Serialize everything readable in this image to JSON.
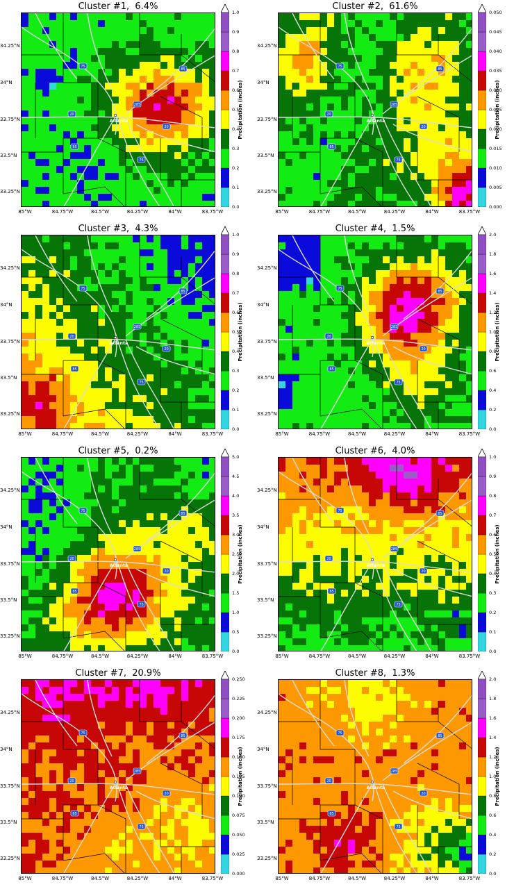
{
  "colorbar_colors": [
    "#33d6e0",
    "#0a0adb",
    "#13ec13",
    "#067406",
    "#fdfd00",
    "#fd9800",
    "#c70606",
    "#ff00ff",
    "#9a5cc6"
  ],
  "colorbar_label": "Precipitation (inches)",
  "x_ticks": [
    "85°W",
    "84.75°W",
    "84.5°W",
    "84.25°W",
    "84°W",
    "83.75°W"
  ],
  "y_ticks": [
    "34.25°N",
    "34°N",
    "33.75°N",
    "33.5°N",
    "33.25°N"
  ],
  "city_label": "Atlanta",
  "highway_labels": [
    "75",
    "85",
    "20",
    "285",
    "20",
    "85",
    "75"
  ],
  "chart_data": [
    {
      "type": "heatmap",
      "title": "Cluster #1,  6.4%",
      "cluster": 1,
      "percent": 6.4,
      "colorbar_ticks": [
        "0.0",
        "0.1",
        "0.2",
        "0.3",
        "0.4",
        "0.5",
        "0.6",
        "0.7",
        "0.8",
        "0.9",
        "1.0"
      ],
      "levels": [
        0,
        0.1,
        0.2,
        0.3,
        0.4,
        0.5,
        0.6,
        0.7,
        0.8,
        0.9,
        1.0
      ],
      "pattern": "Green (0.2–0.3) dominates west and north; blue patch (0.1–0.2) in northwest; orange-red maximum (0.5–0.7) east-southeast of Atlanta"
    },
    {
      "type": "heatmap",
      "title": "Cluster #2,  61.6%",
      "cluster": 2,
      "percent": 61.6,
      "colorbar_ticks": [
        "0.000",
        "0.005",
        "0.010",
        "0.015",
        "0.020",
        "0.025",
        "0.030",
        "0.035",
        "0.040",
        "0.045",
        "0.050"
      ],
      "levels": [
        0,
        0.005,
        0.01,
        0.015,
        0.02,
        0.025,
        0.03,
        0.035,
        0.04,
        0.045,
        0.05
      ],
      "pattern": "Mostly dark/light green (0.010–0.020); yellow-orange (0.020–0.030) in northwest and east; red (0.030+) in southeast corner"
    },
    {
      "type": "heatmap",
      "title": "Cluster #3,  4.3%",
      "cluster": 3,
      "percent": 4.3,
      "colorbar_ticks": [
        "0.0",
        "0.1",
        "0.2",
        "0.3",
        "0.4",
        "0.5",
        "0.6",
        "0.7",
        "0.8",
        "0.9",
        "1.0"
      ],
      "levels": [
        0,
        0.1,
        0.2,
        0.3,
        0.4,
        0.5,
        0.6,
        0.7,
        0.8,
        0.9,
        1.0
      ],
      "pattern": "Green (0.2–0.3) northeast with small blue patch; red to magenta (0.6–0.9) in southwest; yellow across center"
    },
    {
      "type": "heatmap",
      "title": "Cluster #4,  1.5%",
      "cluster": 4,
      "percent": 1.5,
      "colorbar_ticks": [
        "0.0",
        "0.2",
        "0.4",
        "0.6",
        "0.8",
        "1.0",
        "1.2",
        "1.4",
        "1.6",
        "1.8",
        "2.0"
      ],
      "levels": [
        0,
        0.2,
        0.4,
        0.6,
        0.8,
        1.0,
        1.2,
        1.4,
        1.6,
        1.8,
        2.0
      ],
      "pattern": "Blue (0.2–0.4) northwest; green west; orange-red (1.0–1.4) band from Atlanta northeast and southeast"
    },
    {
      "type": "heatmap",
      "title": "Cluster #5,  0.2%",
      "cluster": 5,
      "percent": 0.2,
      "colorbar_ticks": [
        "0.0",
        "0.5",
        "1.0",
        "1.5",
        "2.0",
        "2.5",
        "3.0",
        "3.5",
        "4.0",
        "4.5",
        "5.0"
      ],
      "levels": [
        0,
        0.5,
        1.0,
        1.5,
        2.0,
        2.5,
        3.0,
        3.5,
        4.0,
        4.5,
        5.0
      ],
      "pattern": "Green north and west edges; yellow-orange ring; red center-south with magenta maximum (3.5–4.5) south of Atlanta"
    },
    {
      "type": "heatmap",
      "title": "Cluster #6,  4.0%",
      "cluster": 6,
      "percent": 4.0,
      "colorbar_ticks": [
        "0.0",
        "0.1",
        "0.2",
        "0.3",
        "0.4",
        "0.5",
        "0.6",
        "0.7",
        "0.8",
        "0.9",
        "1.0"
      ],
      "levels": [
        0,
        0.1,
        0.2,
        0.3,
        0.4,
        0.5,
        0.6,
        0.7,
        0.8,
        0.9,
        1.0
      ],
      "pattern": "Red (0.6–0.8) north with magenta/purple (0.8–1.0) northeast; yellow center; green south with blue spots"
    },
    {
      "type": "heatmap",
      "title": "Cluster #7,  20.9%",
      "cluster": 7,
      "percent": 20.9,
      "colorbar_ticks": [
        "0.000",
        "0.025",
        "0.050",
        "0.075",
        "0.100",
        "0.125",
        "0.150",
        "0.175",
        "0.200",
        "0.225",
        "0.250"
      ],
      "levels": [
        0,
        0.025,
        0.05,
        0.075,
        0.1,
        0.125,
        0.15,
        0.175,
        0.2,
        0.225,
        0.25
      ],
      "pattern": "Dark red (0.150–0.200) dominant; magenta (0.200–0.225) in north; orange (0.125–0.150) southeast"
    },
    {
      "type": "heatmap",
      "title": "Cluster #8,  1.3%",
      "cluster": 8,
      "percent": 1.3,
      "colorbar_ticks": [
        "0.0",
        "0.2",
        "0.4",
        "0.6",
        "0.8",
        "1.0",
        "1.2",
        "1.4",
        "1.6",
        "1.8",
        "2.0"
      ],
      "levels": [
        0,
        0.2,
        0.4,
        0.6,
        0.8,
        1.0,
        1.2,
        1.4,
        1.6,
        1.8,
        2.0
      ],
      "pattern": "Orange (1.0–1.2) north; dark red (1.2–1.4) center; magenta spots south of Atlanta; yellow-green southeast"
    }
  ]
}
